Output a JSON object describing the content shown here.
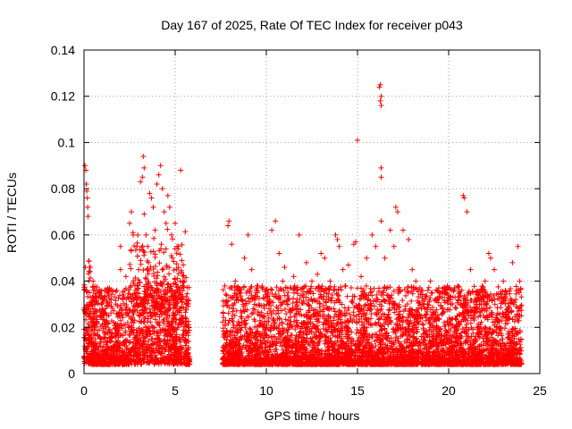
{
  "chart_data": {
    "type": "scatter",
    "title": "Day 167 of 2025, Rate Of TEC Index for receiver p043",
    "xlabel": "GPS time / hours",
    "ylabel": "ROTI / TECUs",
    "xlim": [
      0,
      25
    ],
    "ylim": [
      0,
      0.14
    ],
    "xticks": [
      0,
      5,
      10,
      15,
      20,
      25
    ],
    "yticks": [
      0,
      0.02,
      0.04,
      0.06,
      0.08,
      0.1,
      0.12,
      0.14
    ],
    "grid": true,
    "marker": "plus",
    "color": "#ff0000",
    "series": [
      {
        "name": "",
        "data_gap_hours": [
          5.8,
          7.6
        ],
        "points": [
          [
            0.05,
            0.09
          ],
          [
            0.1,
            0.088
          ],
          [
            0.12,
            0.082
          ],
          [
            0.15,
            0.079
          ],
          [
            0.18,
            0.076
          ],
          [
            0.2,
            0.072
          ],
          [
            0.22,
            0.068
          ],
          [
            0.08,
            0.046
          ],
          [
            0.3,
            0.046
          ],
          [
            0.5,
            0.04
          ],
          [
            0.3,
            0.035
          ],
          [
            0.6,
            0.03
          ],
          [
            1.0,
            0.028
          ],
          [
            1.5,
            0.032
          ],
          [
            1.8,
            0.036
          ],
          [
            2.0,
            0.045
          ],
          [
            2.0,
            0.055
          ],
          [
            2.3,
            0.042
          ],
          [
            2.5,
            0.065
          ],
          [
            2.6,
            0.07
          ],
          [
            2.7,
            0.06
          ],
          [
            2.9,
            0.055
          ],
          [
            3.0,
            0.045
          ],
          [
            3.1,
            0.083
          ],
          [
            3.2,
            0.085
          ],
          [
            3.25,
            0.094
          ],
          [
            3.3,
            0.089
          ],
          [
            3.3,
            0.069
          ],
          [
            3.4,
            0.06
          ],
          [
            3.5,
            0.055
          ],
          [
            3.6,
            0.078
          ],
          [
            3.7,
            0.076
          ],
          [
            3.8,
            0.072
          ],
          [
            3.9,
            0.062
          ],
          [
            4.0,
            0.082
          ],
          [
            4.1,
            0.086
          ],
          [
            4.2,
            0.09
          ],
          [
            4.3,
            0.08
          ],
          [
            4.4,
            0.07
          ],
          [
            4.5,
            0.065
          ],
          [
            4.6,
            0.077
          ],
          [
            4.7,
            0.072
          ],
          [
            4.8,
            0.06
          ],
          [
            5.0,
            0.065
          ],
          [
            5.1,
            0.055
          ],
          [
            5.3,
            0.088
          ],
          [
            5.5,
            0.04
          ],
          [
            5.6,
            0.03
          ],
          [
            7.9,
            0.064
          ],
          [
            7.95,
            0.066
          ],
          [
            8.1,
            0.056
          ],
          [
            8.3,
            0.04
          ],
          [
            8.5,
            0.036
          ],
          [
            8.8,
            0.05
          ],
          [
            9.0,
            0.06
          ],
          [
            9.2,
            0.045
          ],
          [
            9.5,
            0.038
          ],
          [
            10.3,
            0.062
          ],
          [
            10.5,
            0.066
          ],
          [
            10.7,
            0.052
          ],
          [
            10.9,
            0.04
          ],
          [
            11.0,
            0.046
          ],
          [
            11.5,
            0.042
          ],
          [
            11.8,
            0.06
          ],
          [
            12.2,
            0.048
          ],
          [
            12.5,
            0.04
          ],
          [
            12.8,
            0.043
          ],
          [
            13.0,
            0.052
          ],
          [
            13.2,
            0.05
          ],
          [
            13.5,
            0.04
          ],
          [
            13.8,
            0.06
          ],
          [
            13.9,
            0.058
          ],
          [
            14.0,
            0.055
          ],
          [
            14.2,
            0.045
          ],
          [
            14.5,
            0.047
          ],
          [
            14.8,
            0.056
          ],
          [
            14.9,
            0.057
          ],
          [
            15.0,
            0.101
          ],
          [
            15.0,
            0.037
          ],
          [
            15.2,
            0.042
          ],
          [
            15.5,
            0.05
          ],
          [
            15.8,
            0.06
          ],
          [
            16.0,
            0.055
          ],
          [
            16.2,
            0.124
          ],
          [
            16.25,
            0.125
          ],
          [
            16.3,
            0.12
          ],
          [
            16.25,
            0.118
          ],
          [
            16.3,
            0.116
          ],
          [
            16.3,
            0.089
          ],
          [
            16.3,
            0.085
          ],
          [
            16.3,
            0.066
          ],
          [
            16.5,
            0.05
          ],
          [
            16.8,
            0.062
          ],
          [
            17.0,
            0.055
          ],
          [
            17.1,
            0.072
          ],
          [
            17.2,
            0.07
          ],
          [
            17.5,
            0.062
          ],
          [
            17.8,
            0.058
          ],
          [
            18.0,
            0.045
          ],
          [
            18.2,
            0.04
          ],
          [
            18.5,
            0.036
          ],
          [
            19.0,
            0.04
          ],
          [
            19.5,
            0.035
          ],
          [
            20.0,
            0.032
          ],
          [
            20.5,
            0.038
          ],
          [
            20.8,
            0.077
          ],
          [
            20.85,
            0.076
          ],
          [
            21.0,
            0.07
          ],
          [
            21.2,
            0.045
          ],
          [
            21.5,
            0.03
          ],
          [
            22.0,
            0.04
          ],
          [
            22.2,
            0.052
          ],
          [
            22.3,
            0.05
          ],
          [
            22.5,
            0.045
          ],
          [
            23.0,
            0.04
          ],
          [
            23.5,
            0.048
          ],
          [
            23.8,
            0.055
          ],
          [
            23.9,
            0.04
          ]
        ]
      }
    ]
  }
}
